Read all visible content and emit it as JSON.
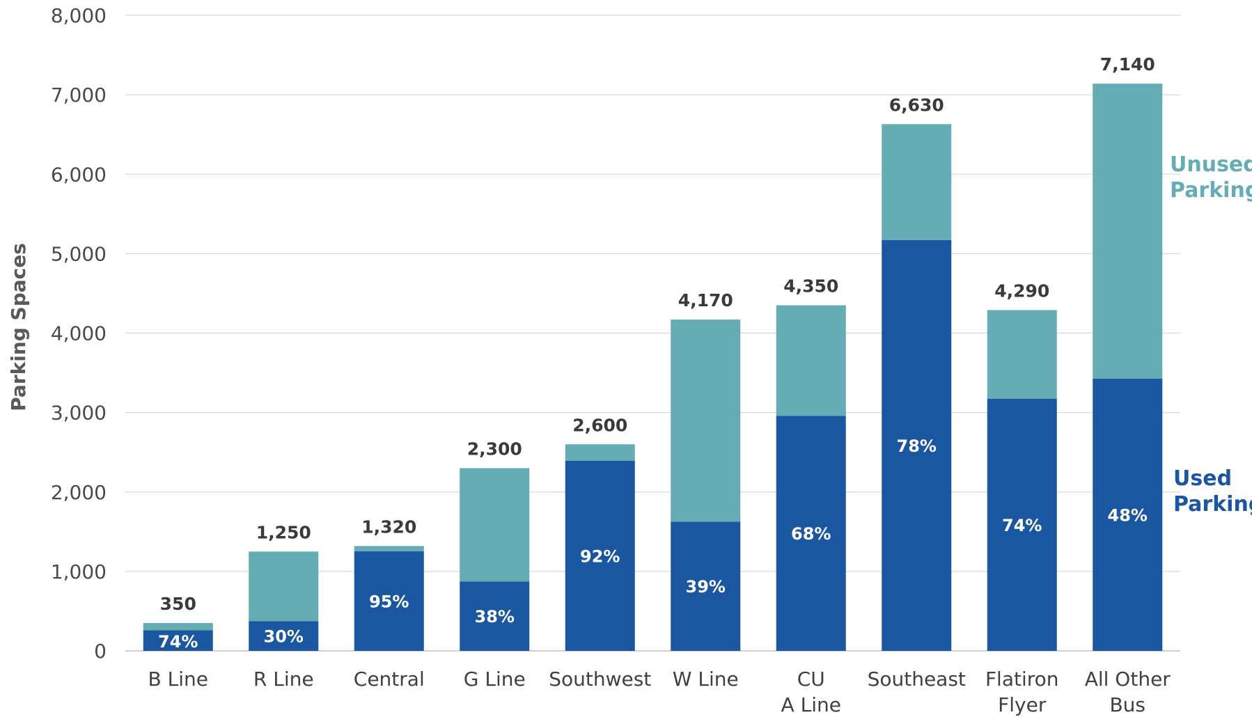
{
  "chart_data": {
    "type": "bar",
    "stacked": true,
    "ylabel": "Parking Spaces",
    "xlabel": "",
    "ylim": [
      0,
      8000
    ],
    "yticks": [
      0,
      1000,
      2000,
      3000,
      4000,
      5000,
      6000,
      7000,
      8000
    ],
    "ytick_labels": [
      "0",
      "1,000",
      "2,000",
      "3,000",
      "4,000",
      "5,000",
      "6,000",
      "7,000",
      "8,000"
    ],
    "grid": true,
    "categories": [
      [
        "B Line"
      ],
      [
        "R Line"
      ],
      [
        "Central"
      ],
      [
        "G Line"
      ],
      [
        "Southwest"
      ],
      [
        "W Line"
      ],
      [
        "CU",
        "A Line"
      ],
      [
        "Southeast"
      ],
      [
        "Flatiron",
        "Flyer"
      ],
      [
        "All Other",
        "Bus"
      ]
    ],
    "totals": [
      350,
      1250,
      1320,
      2300,
      2600,
      4170,
      4350,
      6630,
      4290,
      7140
    ],
    "total_labels": [
      "350",
      "1,250",
      "1,320",
      "2,300",
      "2,600",
      "4,170",
      "4,350",
      "6,630",
      "4,290",
      "7,140"
    ],
    "series": [
      {
        "name": "Used Parking",
        "color": "#1b56a0",
        "values": [
          259,
          375,
          1254,
          874,
          2392,
          1626,
          2958,
          5171,
          3175,
          3427
        ],
        "labels": [
          "74%",
          "30%",
          "95%",
          "38%",
          "92%",
          "39%",
          "68%",
          "78%",
          "74%",
          "48%"
        ]
      },
      {
        "name": "Unused Parking",
        "color": "#65acb5",
        "values": [
          91,
          875,
          66,
          1426,
          208,
          2544,
          1392,
          1459,
          1115,
          3713
        ]
      }
    ],
    "legend": {
      "placement": "right",
      "unused_lines": [
        "Unused",
        "Parking"
      ],
      "used_lines": [
        "Used",
        "Parking"
      ]
    }
  }
}
